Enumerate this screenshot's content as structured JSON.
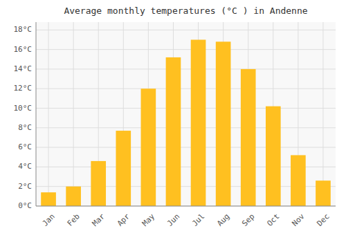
{
  "chart_data": {
    "type": "bar",
    "title": "Average monthly temperatures (°C ) in Andenne",
    "categories": [
      "Jan",
      "Feb",
      "Mar",
      "Apr",
      "May",
      "Jun",
      "Jul",
      "Aug",
      "Sep",
      "Oct",
      "Nov",
      "Dec"
    ],
    "values": [
      1.4,
      2.0,
      4.6,
      7.7,
      12.0,
      15.2,
      17.0,
      16.8,
      14.0,
      10.2,
      5.2,
      2.6
    ],
    "color": "#FFC020",
    "ylim": [
      0,
      18.8
    ],
    "yticks": [
      {
        "value": 0,
        "label": "0°C"
      },
      {
        "value": 2,
        "label": "2°C"
      },
      {
        "value": 4,
        "label": "4°C"
      },
      {
        "value": 6,
        "label": "6°C"
      },
      {
        "value": 8,
        "label": "8°C"
      },
      {
        "value": 10,
        "label": "10°C"
      },
      {
        "value": 12,
        "label": "12°C"
      },
      {
        "value": 14,
        "label": "14°C"
      },
      {
        "value": 16,
        "label": "16°C"
      },
      {
        "value": 18,
        "label": "18°C"
      }
    ],
    "grid": true
  }
}
